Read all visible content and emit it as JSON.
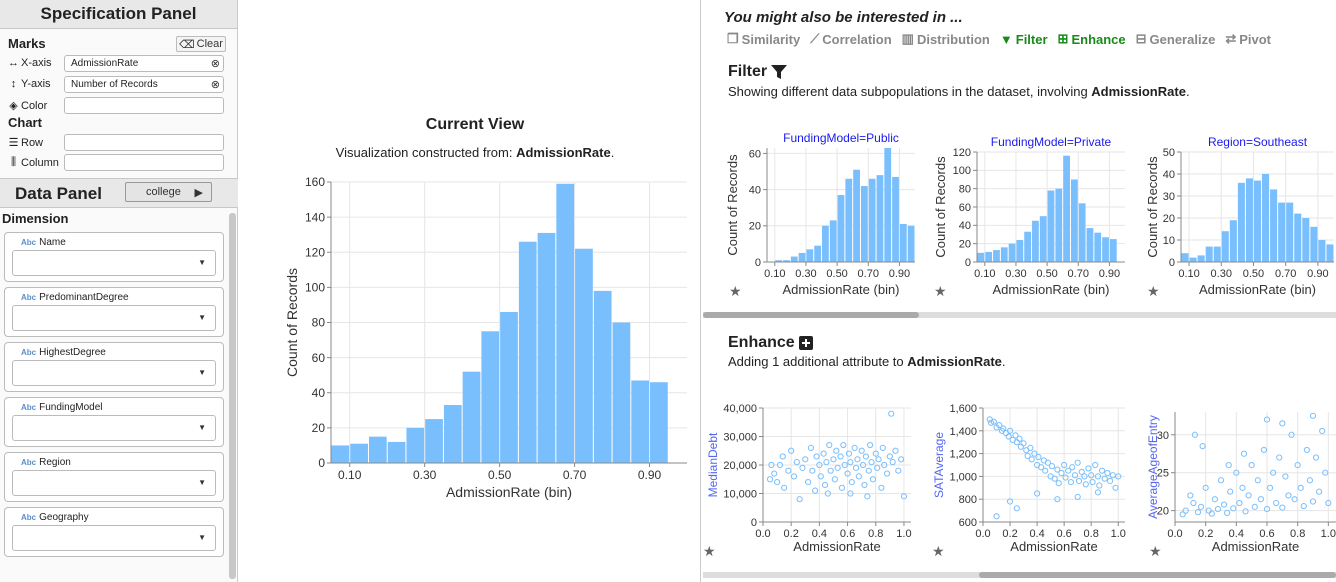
{
  "spec_panel": {
    "title": "Specification Panel",
    "marks_label": "Marks",
    "clear_label": "Clear",
    "chart_label": "Chart",
    "shelves": [
      {
        "label": "X-axis",
        "value": "AdmissionRate",
        "icon": "horizontal-arrows-icon"
      },
      {
        "label": "Y-axis",
        "value": "Number of Records",
        "icon": "vertical-arrows-icon"
      },
      {
        "label": "Color",
        "value": "",
        "icon": "paint-bucket-icon"
      },
      {
        "label": "Row",
        "value": "",
        "icon": "rows-icon"
      },
      {
        "label": "Column",
        "value": "",
        "icon": "columns-icon"
      }
    ]
  },
  "data_panel": {
    "title": "Data Panel",
    "dataset": "college",
    "dimension_label": "Dimension",
    "dimensions": [
      {
        "type": "Abc",
        "name": "Name"
      },
      {
        "type": "Abc",
        "name": "PredominantDegree"
      },
      {
        "type": "Abc",
        "name": "HighestDegree"
      },
      {
        "type": "Abc",
        "name": "FundingModel"
      },
      {
        "type": "Abc",
        "name": "Region"
      },
      {
        "type": "Abc",
        "name": "Geography"
      }
    ]
  },
  "current_view": {
    "title": "Current View",
    "subtitle_prefix": "Visualization constructed from: ",
    "subtitle_attr": "AdmissionRate",
    "subtitle_suffix": "."
  },
  "recommendations": {
    "header": "You might also be interested in ...",
    "actions": [
      {
        "label": "Similarity",
        "icon": "copy-icon",
        "active": false
      },
      {
        "label": "Correlation",
        "icon": "line-chart-icon",
        "active": false
      },
      {
        "label": "Distribution",
        "icon": "bar-chart-icon",
        "active": false
      },
      {
        "label": "Filter",
        "icon": "filter-icon",
        "active": true
      },
      {
        "label": "Enhance",
        "icon": "plus-square-icon",
        "active": true
      },
      {
        "label": "Generalize",
        "icon": "minus-square-icon",
        "active": false
      },
      {
        "label": "Pivot",
        "icon": "retweet-icon",
        "active": false
      }
    ],
    "filter": {
      "title": "Filter",
      "desc_prefix": "Showing different data subpopulations in the dataset, involving ",
      "desc_attr": "AdmissionRate",
      "desc_suffix": "."
    },
    "enhance": {
      "title": "Enhance",
      "desc_prefix": "Adding 1 additional attribute to ",
      "desc_attr": "AdmissionRate",
      "desc_suffix": "."
    }
  },
  "colors": {
    "bar": "#79bffd",
    "point": "#79bffd",
    "active_action": "#1a8a1a",
    "hist_title": "#1a1aee"
  },
  "chart_data": [
    {
      "id": "current",
      "type": "bar",
      "title": "",
      "xlabel": "AdmissionRate (bin)",
      "ylabel": "Count of Records",
      "xlim": [
        0.05,
        1.0
      ],
      "ylim": [
        0,
        160
      ],
      "yticks": [
        0,
        20,
        40,
        60,
        80,
        100,
        120,
        140,
        160
      ],
      "xticks": [
        0.1,
        0.3,
        0.5,
        0.7,
        0.9
      ],
      "xtick_labels": [
        "0.10",
        "0.30",
        "0.50",
        "0.70",
        "0.90"
      ],
      "bin_start": 0.05,
      "bin_width": 0.05,
      "values": [
        10,
        11,
        15,
        12,
        20,
        25,
        33,
        52,
        75,
        86,
        126,
        131,
        159,
        122,
        98,
        80,
        47,
        46
      ],
      "grid": true
    },
    {
      "id": "filter-public",
      "type": "bar",
      "title": "FundingModel=Public",
      "xlabel": "AdmissionRate (bin)",
      "ylabel": "Count of Records",
      "xlim": [
        0.05,
        1.0
      ],
      "ylim": [
        0,
        63
      ],
      "yticks": [
        0,
        20,
        40,
        60
      ],
      "xticks": [
        0.1,
        0.3,
        0.5,
        0.7,
        0.9
      ],
      "xtick_labels": [
        "0.10",
        "0.30",
        "0.50",
        "0.70",
        "0.90"
      ],
      "bin_start": 0.05,
      "bin_width": 0.05,
      "values": [
        0,
        1,
        1,
        3,
        5,
        7,
        9,
        20,
        23,
        37,
        46,
        51,
        42,
        46,
        48,
        63,
        47,
        21,
        20
      ],
      "grid": true
    },
    {
      "id": "filter-private",
      "type": "bar",
      "title": "FundingModel=Private",
      "xlabel": "AdmissionRate (bin)",
      "ylabel": "Count of Records",
      "xlim": [
        0.05,
        1.0
      ],
      "ylim": [
        0,
        120
      ],
      "yticks": [
        0,
        20,
        40,
        60,
        80,
        100,
        120
      ],
      "xticks": [
        0.1,
        0.3,
        0.5,
        0.7,
        0.9
      ],
      "xtick_labels": [
        "0.10",
        "0.30",
        "0.50",
        "0.70",
        "0.90"
      ],
      "bin_start": 0.05,
      "bin_width": 0.05,
      "values": [
        10,
        11,
        13,
        16,
        20,
        24,
        33,
        45,
        50,
        78,
        80,
        116,
        90,
        64,
        37,
        32,
        27,
        25
      ],
      "grid": true
    },
    {
      "id": "filter-southeast",
      "type": "bar",
      "title": "Region=Southeast",
      "xlabel": "AdmissionRate (bin)",
      "ylabel": "Count of Records",
      "xlim": [
        0.05,
        1.0
      ],
      "ylim": [
        0,
        50
      ],
      "yticks": [
        0,
        10,
        20,
        30,
        40,
        50
      ],
      "xticks": [
        0.1,
        0.3,
        0.5,
        0.7,
        0.9
      ],
      "xtick_labels": [
        "0.10",
        "0.30",
        "0.50",
        "0.70",
        "0.90"
      ],
      "bin_start": 0.05,
      "bin_width": 0.05,
      "values": [
        4,
        2,
        3,
        7,
        7,
        14,
        19,
        36,
        38,
        37,
        40,
        33,
        27,
        27,
        22,
        20,
        16,
        10,
        8
      ],
      "grid": true
    },
    {
      "id": "enhance-mediandebt",
      "type": "scatter",
      "title": "",
      "xlabel": "AdmissionRate",
      "ylabel": "MedianDebt",
      "xlim": [
        0,
        1.05
      ],
      "ylim": [
        0,
        40000
      ],
      "xticks": [
        0,
        0.2,
        0.4,
        0.6,
        0.8,
        1.0
      ],
      "xtick_labels": [
        "0.0",
        "0.2",
        "0.4",
        "0.6",
        "0.8",
        "1.0"
      ],
      "yticks": [
        0,
        10000,
        20000,
        30000,
        40000
      ],
      "ytick_labels": [
        "0",
        "10,000",
        "20,000",
        "30,000",
        "40,000"
      ],
      "points": [
        [
          0.05,
          15000
        ],
        [
          0.06,
          20000
        ],
        [
          0.08,
          17000
        ],
        [
          0.1,
          14000
        ],
        [
          0.12,
          20000
        ],
        [
          0.14,
          23000
        ],
        [
          0.15,
          12000
        ],
        [
          0.18,
          18000
        ],
        [
          0.2,
          25000
        ],
        [
          0.22,
          16000
        ],
        [
          0.24,
          21000
        ],
        [
          0.26,
          8000
        ],
        [
          0.28,
          19000
        ],
        [
          0.3,
          22000
        ],
        [
          0.32,
          14000
        ],
        [
          0.34,
          26000
        ],
        [
          0.35,
          18000
        ],
        [
          0.37,
          11000
        ],
        [
          0.38,
          23000
        ],
        [
          0.4,
          20000
        ],
        [
          0.41,
          16000
        ],
        [
          0.43,
          24000
        ],
        [
          0.44,
          13000
        ],
        [
          0.45,
          21000
        ],
        [
          0.47,
          27000
        ],
        [
          0.48,
          18000
        ],
        [
          0.5,
          22000
        ],
        [
          0.51,
          15000
        ],
        [
          0.52,
          25000
        ],
        [
          0.53,
          19000
        ],
        [
          0.55,
          23000
        ],
        [
          0.56,
          12000
        ],
        [
          0.57,
          27000
        ],
        [
          0.58,
          20000
        ],
        [
          0.6,
          17000
        ],
        [
          0.61,
          24000
        ],
        [
          0.62,
          21000
        ],
        [
          0.63,
          14000
        ],
        [
          0.65,
          26000
        ],
        [
          0.66,
          19000
        ],
        [
          0.67,
          22000
        ],
        [
          0.68,
          16000
        ],
        [
          0.7,
          25000
        ],
        [
          0.71,
          20000
        ],
        [
          0.72,
          13000
        ],
        [
          0.73,
          23000
        ],
        [
          0.75,
          18000
        ],
        [
          0.76,
          27000
        ],
        [
          0.77,
          21000
        ],
        [
          0.78,
          15000
        ],
        [
          0.8,
          24000
        ],
        [
          0.81,
          19000
        ],
        [
          0.82,
          22000
        ],
        [
          0.84,
          12000
        ],
        [
          0.85,
          26000
        ],
        [
          0.86,
          20000
        ],
        [
          0.88,
          17000
        ],
        [
          0.9,
          23000
        ],
        [
          0.92,
          21000
        ],
        [
          0.94,
          25000
        ],
        [
          0.96,
          18000
        ],
        [
          0.98,
          22000
        ],
        [
          1.0,
          9000
        ],
        [
          0.91,
          38000
        ],
        [
          0.62,
          10000
        ],
        [
          0.74,
          9000
        ],
        [
          0.46,
          10000
        ]
      ]
    },
    {
      "id": "enhance-satavg",
      "type": "scatter",
      "title": "",
      "xlabel": "AdmissionRate",
      "ylabel": "SATAverage",
      "xlim": [
        0,
        1.05
      ],
      "ylim": [
        600,
        1600
      ],
      "xticks": [
        0,
        0.2,
        0.4,
        0.6,
        0.8,
        1.0
      ],
      "xtick_labels": [
        "0.0",
        "0.2",
        "0.4",
        "0.6",
        "0.8",
        "1.0"
      ],
      "yticks": [
        600,
        800,
        1000,
        1200,
        1400,
        1600
      ],
      "ytick_labels": [
        "600",
        "800",
        "1,000",
        "1,200",
        "1,400",
        "1,600"
      ],
      "points": [
        [
          0.05,
          1500
        ],
        [
          0.06,
          1470
        ],
        [
          0.08,
          1480
        ],
        [
          0.1,
          1430
        ],
        [
          0.12,
          1450
        ],
        [
          0.14,
          1400
        ],
        [
          0.15,
          1420
        ],
        [
          0.17,
          1380
        ],
        [
          0.19,
          1350
        ],
        [
          0.2,
          1400
        ],
        [
          0.22,
          1320
        ],
        [
          0.24,
          1360
        ],
        [
          0.25,
          1300
        ],
        [
          0.27,
          1330
        ],
        [
          0.28,
          1260
        ],
        [
          0.3,
          1290
        ],
        [
          0.32,
          1230
        ],
        [
          0.33,
          1180
        ],
        [
          0.35,
          1250
        ],
        [
          0.36,
          1150
        ],
        [
          0.38,
          1200
        ],
        [
          0.4,
          1100
        ],
        [
          0.41,
          1170
        ],
        [
          0.43,
          1080
        ],
        [
          0.45,
          1140
        ],
        [
          0.46,
          1050
        ],
        [
          0.48,
          1120
        ],
        [
          0.5,
          1000
        ],
        [
          0.51,
          1090
        ],
        [
          0.53,
          980
        ],
        [
          0.55,
          1060
        ],
        [
          0.56,
          940
        ],
        [
          0.58,
          1030
        ],
        [
          0.6,
          1100
        ],
        [
          0.61,
          990
        ],
        [
          0.63,
          1050
        ],
        [
          0.65,
          950
        ],
        [
          0.66,
          1080
        ],
        [
          0.68,
          1010
        ],
        [
          0.7,
          1120
        ],
        [
          0.71,
          960
        ],
        [
          0.73,
          1040
        ],
        [
          0.75,
          1000
        ],
        [
          0.76,
          930
        ],
        [
          0.78,
          1070
        ],
        [
          0.8,
          1010
        ],
        [
          0.81,
          950
        ],
        [
          0.83,
          1100
        ],
        [
          0.85,
          1000
        ],
        [
          0.86,
          920
        ],
        [
          0.88,
          1050
        ],
        [
          0.9,
          980
        ],
        [
          0.92,
          1030
        ],
        [
          0.94,
          960
        ],
        [
          0.96,
          1010
        ],
        [
          0.98,
          900
        ],
        [
          1.0,
          1000
        ],
        [
          0.2,
          780
        ],
        [
          0.25,
          720
        ],
        [
          0.4,
          850
        ],
        [
          0.1,
          650
        ],
        [
          0.55,
          800
        ],
        [
          0.7,
          820
        ],
        [
          0.85,
          860
        ]
      ]
    },
    {
      "id": "enhance-ageentry",
      "type": "scatter",
      "title": "",
      "xlabel": "AdmissionRate",
      "ylabel": "AverageAgeofEntry",
      "xlim": [
        0,
        1.05
      ],
      "ylim": [
        18.5,
        33
      ],
      "xticks": [
        0,
        0.2,
        0.4,
        0.6,
        0.8,
        1.0
      ],
      "xtick_labels": [
        "0.0",
        "0.2",
        "0.4",
        "0.6",
        "0.8",
        "1.0"
      ],
      "yticks": [
        20,
        25,
        30
      ],
      "ytick_labels": [
        "20",
        "25",
        "30"
      ],
      "points": [
        [
          0.05,
          19.5
        ],
        [
          0.07,
          20
        ],
        [
          0.1,
          22
        ],
        [
          0.12,
          21
        ],
        [
          0.15,
          19.8
        ],
        [
          0.17,
          20.5
        ],
        [
          0.2,
          23
        ],
        [
          0.22,
          20
        ],
        [
          0.24,
          19.6
        ],
        [
          0.26,
          21.5
        ],
        [
          0.28,
          20.2
        ],
        [
          0.3,
          24
        ],
        [
          0.32,
          20.8
        ],
        [
          0.34,
          19.7
        ],
        [
          0.36,
          22.5
        ],
        [
          0.38,
          20.3
        ],
        [
          0.4,
          25
        ],
        [
          0.42,
          21
        ],
        [
          0.44,
          23
        ],
        [
          0.46,
          19.9
        ],
        [
          0.48,
          22
        ],
        [
          0.5,
          26
        ],
        [
          0.52,
          20.5
        ],
        [
          0.54,
          24
        ],
        [
          0.56,
          21.5
        ],
        [
          0.58,
          28
        ],
        [
          0.6,
          20.2
        ],
        [
          0.62,
          23
        ],
        [
          0.64,
          25
        ],
        [
          0.66,
          21
        ],
        [
          0.68,
          27
        ],
        [
          0.7,
          20.4
        ],
        [
          0.72,
          24.5
        ],
        [
          0.74,
          22
        ],
        [
          0.76,
          30
        ],
        [
          0.78,
          21.5
        ],
        [
          0.8,
          26
        ],
        [
          0.82,
          23
        ],
        [
          0.84,
          20.6
        ],
        [
          0.86,
          28
        ],
        [
          0.88,
          24
        ],
        [
          0.9,
          21.2
        ],
        [
          0.92,
          27
        ],
        [
          0.94,
          22.5
        ],
        [
          0.96,
          30.5
        ],
        [
          0.98,
          25
        ],
        [
          1.0,
          21
        ],
        [
          0.13,
          30
        ],
        [
          0.18,
          28.5
        ],
        [
          0.6,
          32
        ],
        [
          0.7,
          31.5
        ],
        [
          0.9,
          32.5
        ],
        [
          0.45,
          27.5
        ],
        [
          0.35,
          26
        ]
      ]
    }
  ]
}
